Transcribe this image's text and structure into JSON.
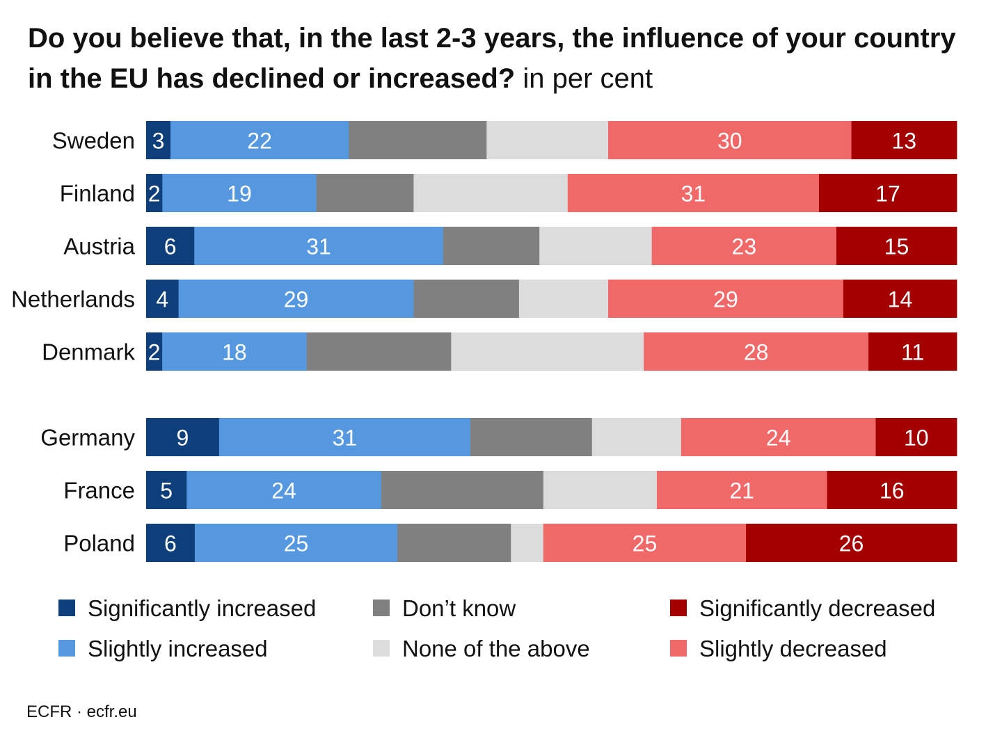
{
  "chart_data": {
    "type": "bar",
    "orientation": "horizontal",
    "stacked": true,
    "title": "Do you believe that, in the last 2-3 years, the influence of your country in the EU has declined or increased?",
    "unit_label": "in per cent",
    "categories": [
      "Sweden",
      "Finland",
      "Austria",
      "Netherlands",
      "Denmark",
      "Germany",
      "France",
      "Poland"
    ],
    "groups": [
      [
        "Sweden",
        "Finland",
        "Austria",
        "Netherlands",
        "Denmark"
      ],
      [
        "Germany",
        "France",
        "Poland"
      ]
    ],
    "series": [
      {
        "name": "Significantly increased",
        "color": "#0e3f7a",
        "label_color": "#ffffff",
        "values": [
          3,
          2,
          6,
          4,
          2,
          9,
          5,
          6
        ],
        "labeled": true
      },
      {
        "name": "Slightly increased",
        "color": "#5598e0",
        "label_color": "#ffffff",
        "values": [
          22,
          19,
          31,
          29,
          18,
          31,
          24,
          25
        ],
        "labeled": true
      },
      {
        "name": "Don’t know",
        "color": "#808080",
        "label_color": "#ffffff",
        "values": [
          17,
          12,
          12,
          13,
          18,
          15,
          20,
          14
        ],
        "labeled": false
      },
      {
        "name": "None of the above",
        "color": "#dcdcdc",
        "label_color": "#111111",
        "values": [
          15,
          19,
          14,
          11,
          24,
          11,
          14,
          4
        ],
        "labeled": false
      },
      {
        "name": "Slightly decreased",
        "color": "#f06868",
        "label_color": "#ffffff",
        "values": [
          30,
          31,
          23,
          29,
          28,
          24,
          21,
          25
        ],
        "labeled": true
      },
      {
        "name": "Significantly decreased",
        "color": "#a40000",
        "label_color": "#ffffff",
        "values": [
          13,
          17,
          15,
          14,
          11,
          10,
          16,
          26
        ],
        "labeled": true
      }
    ],
    "xlim": [
      0,
      100
    ],
    "grid": false,
    "legend_position": "bottom",
    "legend_order": [
      [
        "Significantly increased",
        "Don’t know",
        "Significantly decreased"
      ],
      [
        "Slightly increased",
        "None of the above",
        "Slightly decreased"
      ]
    ]
  },
  "source": "ECFR · ecfr.eu"
}
